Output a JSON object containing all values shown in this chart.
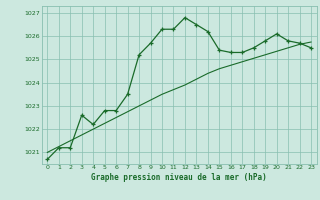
{
  "title": "Graphe pression niveau de la mer (hPa)",
  "background_color": "#cce8df",
  "grid_color": "#88bfb0",
  "line_color": "#1a6b2a",
  "xlim": [
    -0.5,
    23.5
  ],
  "ylim": [
    1020.5,
    1027.3
  ],
  "yticks": [
    1021,
    1022,
    1023,
    1024,
    1025,
    1026,
    1027
  ],
  "xticks": [
    0,
    1,
    2,
    3,
    4,
    5,
    6,
    7,
    8,
    9,
    10,
    11,
    12,
    13,
    14,
    15,
    16,
    17,
    18,
    19,
    20,
    21,
    22,
    23
  ],
  "series1_x": [
    0,
    1,
    2,
    3,
    4,
    5,
    6,
    7,
    8,
    9,
    10,
    11,
    12,
    13,
    14,
    15,
    16,
    17,
    18,
    19,
    20,
    21,
    22,
    23
  ],
  "series1_y": [
    1020.7,
    1021.2,
    1021.2,
    1022.6,
    1022.2,
    1022.8,
    1022.8,
    1023.5,
    1025.2,
    1025.7,
    1026.3,
    1026.3,
    1026.8,
    1026.5,
    1026.2,
    1025.4,
    1025.3,
    1025.3,
    1025.5,
    1025.8,
    1026.1,
    1025.8,
    1025.7,
    1025.5
  ],
  "series2_x": [
    0,
    1,
    2,
    3,
    4,
    5,
    6,
    7,
    8,
    9,
    10,
    11,
    12,
    13,
    14,
    15,
    16,
    17,
    18,
    19,
    20,
    21,
    22,
    23
  ],
  "series2_y": [
    1021.0,
    1021.25,
    1021.5,
    1021.75,
    1022.0,
    1022.25,
    1022.5,
    1022.75,
    1023.0,
    1023.25,
    1023.5,
    1023.7,
    1023.9,
    1024.15,
    1024.4,
    1024.6,
    1024.75,
    1024.9,
    1025.05,
    1025.2,
    1025.35,
    1025.5,
    1025.65,
    1025.75
  ]
}
